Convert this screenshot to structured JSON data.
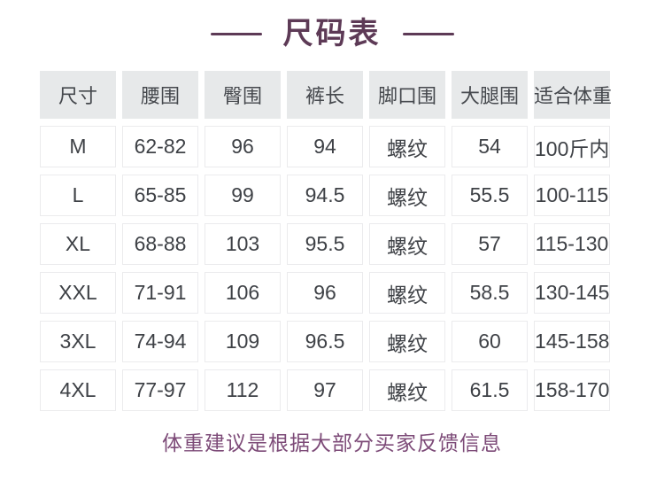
{
  "page": {
    "title": "尺码表",
    "footer_note": "体重建议是根据大部分买家反馈信息"
  },
  "chart_data": {
    "type": "table",
    "title": "尺码表",
    "columns": [
      "尺寸",
      "腰围",
      "臀围",
      "裤长",
      "脚口围",
      "大腿围",
      "适合体重"
    ],
    "rows": [
      [
        "M",
        "62-82",
        "96",
        "94",
        "螺纹",
        "54",
        "100斤内"
      ],
      [
        "L",
        "65-85",
        "99",
        "94.5",
        "螺纹",
        "55.5",
        "100-115"
      ],
      [
        "XL",
        "68-88",
        "103",
        "95.5",
        "螺纹",
        "57",
        "115-130"
      ],
      [
        "XXL",
        "71-91",
        "106",
        "96",
        "螺纹",
        "58.5",
        "130-145"
      ],
      [
        "3XL",
        "74-94",
        "109",
        "96.5",
        "螺纹",
        "60",
        "145-158"
      ],
      [
        "4XL",
        "77-97",
        "112",
        "97",
        "螺纹",
        "61.5",
        "158-170"
      ]
    ],
    "annotation": "体重建议是根据大部分买家反馈信息"
  },
  "colors": {
    "title": "#5d3a56",
    "footer": "#7d4b78",
    "header_bg": "#e7e9ea",
    "header_text": "#45484d",
    "cell_border": "#ebebed",
    "cell_text": "#3e4146",
    "page_bg": "#ffffff"
  }
}
